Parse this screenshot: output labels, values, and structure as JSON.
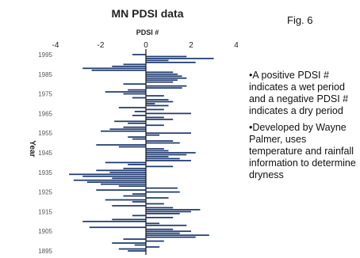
{
  "fig_label": "Fig. 6",
  "notes": [
    "•A positive PDSI # indicates a wet period and a negative PDSI # indicates a dry period",
    "•Developed by Wayne Palmer, uses temperature and rainfall information to determine dryness"
  ],
  "colors": {
    "bar": "#1f3a6e",
    "axis": "#111111",
    "text": "#222222"
  },
  "chart_data": {
    "type": "bar",
    "orientation": "horizontal",
    "title": "MN PDSI data",
    "xlabel": "PDSI #",
    "ylabel": "Year",
    "xlim": [
      -4,
      4
    ],
    "xticks": [
      -4,
      -2,
      0,
      2,
      4
    ],
    "ylim": [
      1893,
      1997
    ],
    "yticks": [
      1895,
      1905,
      1915,
      1925,
      1935,
      1945,
      1955,
      1965,
      1975,
      1985,
      1995
    ],
    "x": [
      1895,
      1896,
      1897,
      1898,
      1899,
      1900,
      1901,
      1902,
      1903,
      1904,
      1905,
      1906,
      1907,
      1908,
      1909,
      1910,
      1911,
      1912,
      1913,
      1914,
      1915,
      1916,
      1917,
      1918,
      1919,
      1920,
      1921,
      1922,
      1923,
      1924,
      1925,
      1926,
      1927,
      1928,
      1929,
      1930,
      1931,
      1932,
      1933,
      1934,
      1935,
      1936,
      1937,
      1938,
      1939,
      1940,
      1941,
      1942,
      1943,
      1944,
      1945,
      1946,
      1947,
      1948,
      1949,
      1950,
      1951,
      1952,
      1953,
      1954,
      1955,
      1956,
      1957,
      1958,
      1959,
      1960,
      1961,
      1962,
      1963,
      1964,
      1965,
      1966,
      1967,
      1968,
      1969,
      1970,
      1971,
      1972,
      1973,
      1974,
      1975,
      1976,
      1977,
      1978,
      1979,
      1980,
      1981,
      1982,
      1983,
      1984,
      1985,
      1986,
      1987,
      1988,
      1989,
      1990,
      1991,
      1992,
      1993,
      1994,
      1995
    ],
    "values": [
      -0.8,
      -1.2,
      0.6,
      -0.5,
      -1.5,
      0.8,
      -1.0,
      2.2,
      2.8,
      1.5,
      2.0,
      1.2,
      -2.5,
      1.8,
      0.6,
      -2.8,
      -1.5,
      1.2,
      -0.6,
      1.5,
      2.0,
      2.4,
      1.2,
      -1.5,
      0.8,
      -0.6,
      -1.8,
      1.0,
      -1.0,
      -0.6,
      1.5,
      -2.2,
      1.4,
      -1.2,
      -2.0,
      -2.6,
      -3.2,
      -1.5,
      -2.8,
      -3.4,
      -1.6,
      -2.2,
      -1.0,
      1.2,
      -0.8,
      -1.8,
      2.0,
      1.5,
      1.0,
      1.8,
      2.2,
      1.0,
      0.8,
      -1.2,
      -2.2,
      1.5,
      1.2,
      -0.6,
      -0.8,
      0.6,
      2.0,
      -2.0,
      -1.6,
      -1.0,
      0.8,
      -0.8,
      -1.4,
      1.2,
      0.8,
      -0.6,
      2.0,
      -0.5,
      0.8,
      -1.2,
      1.0,
      0.4,
      1.2,
      1.0,
      -0.6,
      0.8,
      -1.0,
      -1.8,
      -0.8,
      1.6,
      1.8,
      -1.0,
      1.2,
      1.4,
      1.8,
      1.6,
      1.4,
      1.2,
      -2.4,
      -2.8,
      -1.5,
      -1.0,
      2.2,
      1.0,
      3.0,
      1.8,
      -0.6
    ]
  }
}
